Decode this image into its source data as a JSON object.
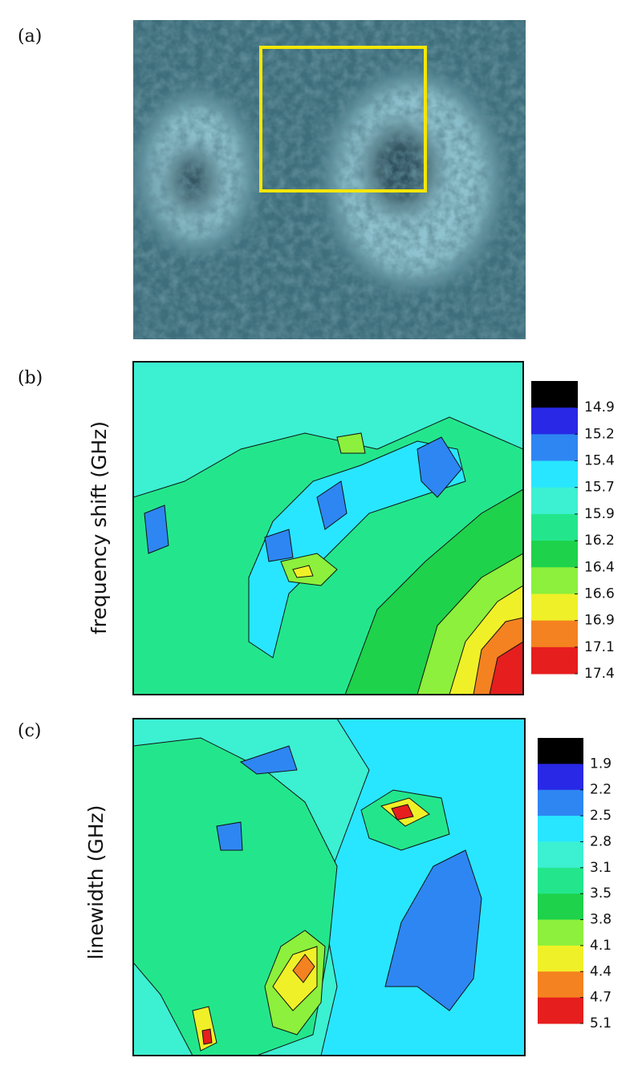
{
  "panels": [
    {
      "label": "(a)"
    },
    {
      "label": "(b)",
      "ylabel": "frequency shift (GHz)",
      "colorbar": {
        "ticks": [
          14.9,
          15.2,
          15.4,
          15.7,
          15.9,
          16.2,
          16.4,
          16.6,
          16.9,
          17.1,
          17.4
        ],
        "colors": [
          "#000000",
          "#2828e6",
          "#2e86f2",
          "#28e6ff",
          "#3cf0d2",
          "#23e68c",
          "#1ed24b",
          "#8cf03c",
          "#f0f028",
          "#f58220",
          "#e61e1e"
        ]
      }
    },
    {
      "label": "(c)",
      "ylabel": "linewidth (GHz)",
      "colorbar": {
        "ticks": [
          1.9,
          2.2,
          2.5,
          2.8,
          3.1,
          3.5,
          3.8,
          4.1,
          4.4,
          4.7,
          5.1
        ],
        "colors": [
          "#000000",
          "#2828e6",
          "#2e86f2",
          "#28e6ff",
          "#3cf0d2",
          "#23e68c",
          "#1ed24b",
          "#8cf03c",
          "#f0f028",
          "#f58220",
          "#e61e1e"
        ]
      }
    }
  ]
}
